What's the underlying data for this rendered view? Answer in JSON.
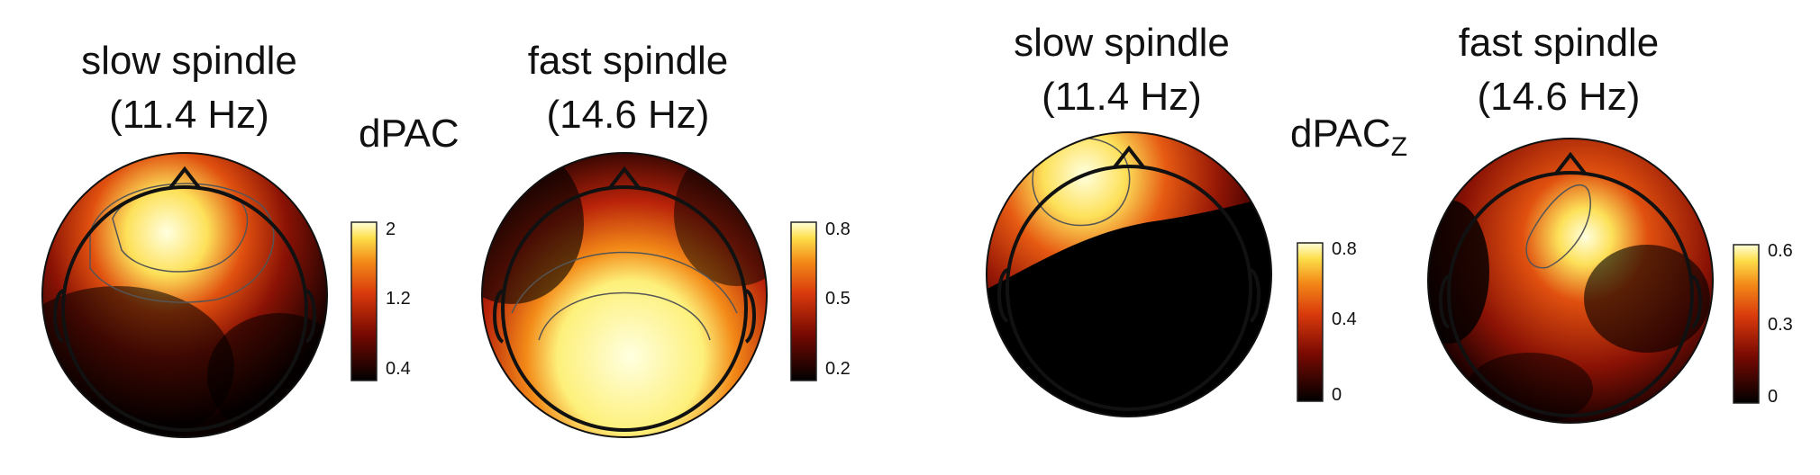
{
  "panels": [
    {
      "title_line1": "slow spindle",
      "title_line2": "(11.4 Hz)"
    },
    {
      "title_line1": "fast spindle",
      "title_line2": "(14.6 Hz)"
    },
    {
      "title_line1": "slow spindle",
      "title_line2": "(11.4 Hz)"
    },
    {
      "title_line1": "fast spindle",
      "title_line2": "(14.6 Hz)"
    }
  ],
  "measures": {
    "left": {
      "label": "dPAC",
      "subscript": ""
    },
    "right": {
      "label": "dPAC",
      "subscript": "Z"
    }
  },
  "colorbars": [
    {
      "ticks": [
        "2",
        "1.2",
        "0.4"
      ]
    },
    {
      "ticks": [
        "0.8",
        "0.5",
        "0.2"
      ]
    },
    {
      "ticks": [
        "0.8",
        "0.4",
        "0"
      ]
    },
    {
      "ticks": [
        "0.6",
        "0.3",
        "0"
      ]
    }
  ],
  "colors": {
    "colormap": [
      "#000000",
      "#7a0a02",
      "#d93a0c",
      "#f38a18",
      "#fdde4a",
      "#ffffd8"
    ],
    "outline": "#111111",
    "contour": "#555555"
  }
}
